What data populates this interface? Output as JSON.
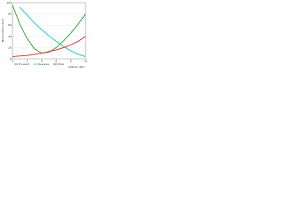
{
  "chart_data": {
    "type": "line",
    "y_label": "Normalized value",
    "x_label": "Optical ratio",
    "x": [
      0,
      1,
      2,
      3,
      4,
      5,
      6,
      7,
      8,
      9,
      10
    ],
    "series": [
      {
        "name": "Forward",
        "color": "#2ca02c",
        "values": [
          96,
          62,
          36,
          18,
          10,
          12,
          20,
          32,
          46,
          62,
          80
        ]
      },
      {
        "name": "Reverse",
        "color": "#17becf",
        "values": [
          null,
          92,
          78,
          64,
          52,
          41,
          31,
          22,
          14,
          8,
          4
        ]
      },
      {
        "name": "Total",
        "color": "#d62728",
        "values": [
          4,
          5,
          6,
          8,
          10,
          13,
          16,
          20,
          25,
          31,
          40
        ]
      }
    ],
    "xlim": [
      0,
      10
    ],
    "ylim": [
      0,
      100
    ],
    "xticks": [
      0,
      2,
      4,
      6,
      8,
      10
    ],
    "yticks": [
      0,
      20,
      40,
      60,
      80,
      100
    ],
    "grid": true
  }
}
